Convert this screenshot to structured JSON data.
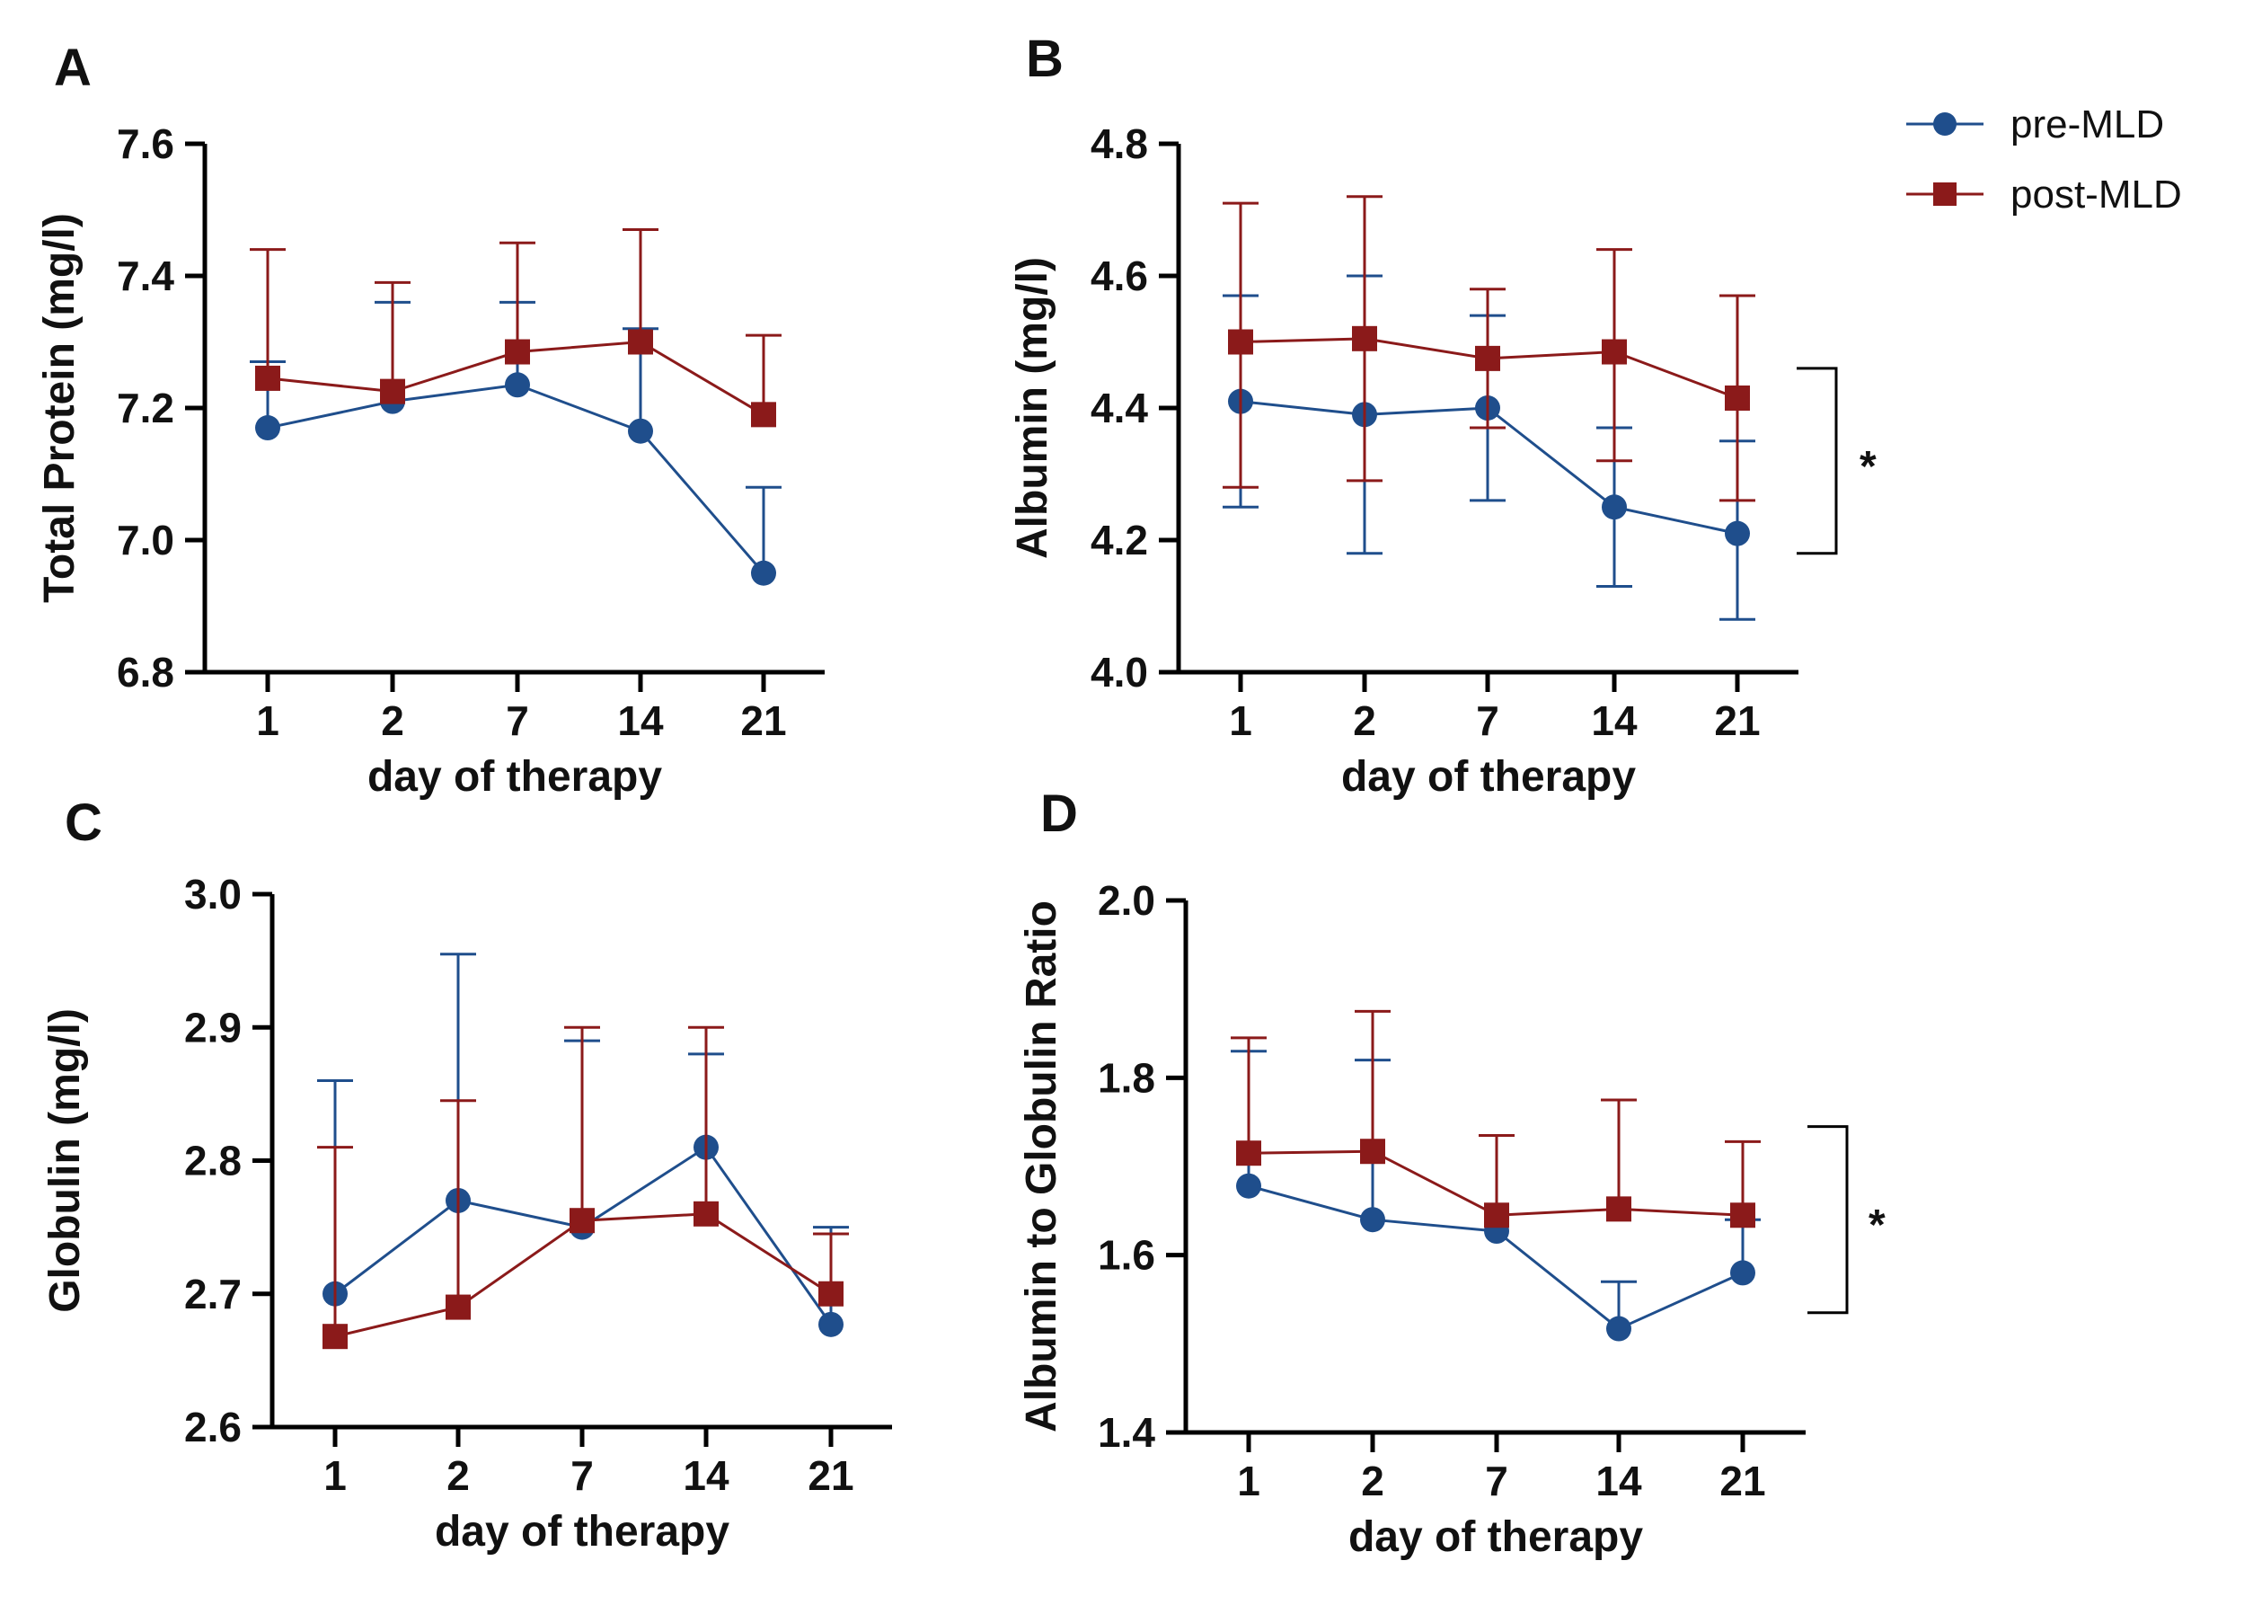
{
  "colors": {
    "pre": "#1f4e8c",
    "post": "#8b1a1a",
    "axis": "#000000"
  },
  "legend": [
    {
      "key": "pre",
      "label": "pre-MLD",
      "marker": "circle"
    },
    {
      "key": "post",
      "label": "post-MLD",
      "marker": "square"
    }
  ],
  "chart_data": [
    {
      "panel": "A",
      "type": "line",
      "categories": [
        "1",
        "2",
        "7",
        "14",
        "21"
      ],
      "xlabel": "day of therapy",
      "ylabel": "Total Protein (mg/l)",
      "ylim": [
        6.8,
        7.6
      ],
      "yticks": [
        "6.8",
        "7.0",
        "7.2",
        "7.4",
        "7.6"
      ],
      "series": [
        {
          "name": "pre-MLD",
          "key": "pre",
          "values": [
            7.17,
            7.21,
            7.235,
            7.165,
            6.95
          ],
          "err_upper": [
            7.27,
            7.36,
            7.36,
            7.32,
            7.08
          ]
        },
        {
          "name": "post-MLD",
          "key": "post",
          "values": [
            7.245,
            7.225,
            7.285,
            7.3,
            7.19
          ],
          "err_upper": [
            7.44,
            7.39,
            7.45,
            7.47,
            7.31
          ]
        }
      ],
      "significance": null
    },
    {
      "panel": "B",
      "type": "line",
      "categories": [
        "1",
        "2",
        "7",
        "14",
        "21"
      ],
      "xlabel": "day of therapy",
      "ylabel": "Albumin (mg/l)",
      "ylim": [
        4.0,
        4.8
      ],
      "yticks": [
        "4.0",
        "4.2",
        "4.4",
        "4.6",
        "4.8"
      ],
      "series": [
        {
          "name": "pre-MLD",
          "key": "pre",
          "values": [
            4.41,
            4.39,
            4.4,
            4.25,
            4.21
          ],
          "err_lower": [
            4.25,
            4.18,
            4.26,
            4.13,
            4.08
          ],
          "err_upper": [
            4.57,
            4.6,
            4.54,
            4.37,
            4.35
          ]
        },
        {
          "name": "post-MLD",
          "key": "post",
          "values": [
            4.5,
            4.505,
            4.475,
            4.485,
            4.415
          ],
          "err_lower": [
            4.28,
            4.29,
            4.37,
            4.32,
            4.26
          ],
          "err_upper": [
            4.71,
            4.72,
            4.58,
            4.64,
            4.57
          ]
        }
      ],
      "significance": {
        "label": "*",
        "from": 4.18,
        "to": 4.46
      }
    },
    {
      "panel": "C",
      "type": "line",
      "categories": [
        "1",
        "2",
        "7",
        "14",
        "21"
      ],
      "xlabel": "day of therapy",
      "ylabel": "Globulin (mg/l)",
      "ylim": [
        2.6,
        3.0
      ],
      "yticks": [
        "2.6",
        "2.7",
        "2.8",
        "2.9",
        "3.0"
      ],
      "series": [
        {
          "name": "pre-MLD",
          "key": "pre",
          "values": [
            2.7,
            2.77,
            2.75,
            2.81,
            2.677
          ],
          "err_upper": [
            2.86,
            2.955,
            2.89,
            2.88,
            2.75
          ]
        },
        {
          "name": "post-MLD",
          "key": "post",
          "values": [
            2.668,
            2.69,
            2.755,
            2.76,
            2.7
          ],
          "err_upper": [
            2.81,
            2.845,
            2.9,
            2.9,
            2.745
          ]
        }
      ],
      "significance": null
    },
    {
      "panel": "D",
      "type": "line",
      "categories": [
        "1",
        "2",
        "7",
        "14",
        "21"
      ],
      "xlabel": "day of therapy",
      "ylabel": "Albumin to Globulin Ratio",
      "ylim": [
        1.4,
        2.0
      ],
      "yticks": [
        "1.4",
        "1.6",
        "1.8",
        "2.0"
      ],
      "series": [
        {
          "name": "pre-MLD",
          "key": "pre",
          "values": [
            1.678,
            1.64,
            1.627,
            1.517,
            1.58
          ],
          "err_upper": [
            1.83,
            1.82,
            1.735,
            1.57,
            1.64
          ]
        },
        {
          "name": "post-MLD",
          "key": "post",
          "values": [
            1.715,
            1.717,
            1.645,
            1.652,
            1.645
          ],
          "err_upper": [
            1.845,
            1.875,
            1.735,
            1.775,
            1.728
          ]
        }
      ],
      "significance": {
        "label": "*",
        "from": 1.535,
        "to": 1.745
      }
    }
  ]
}
